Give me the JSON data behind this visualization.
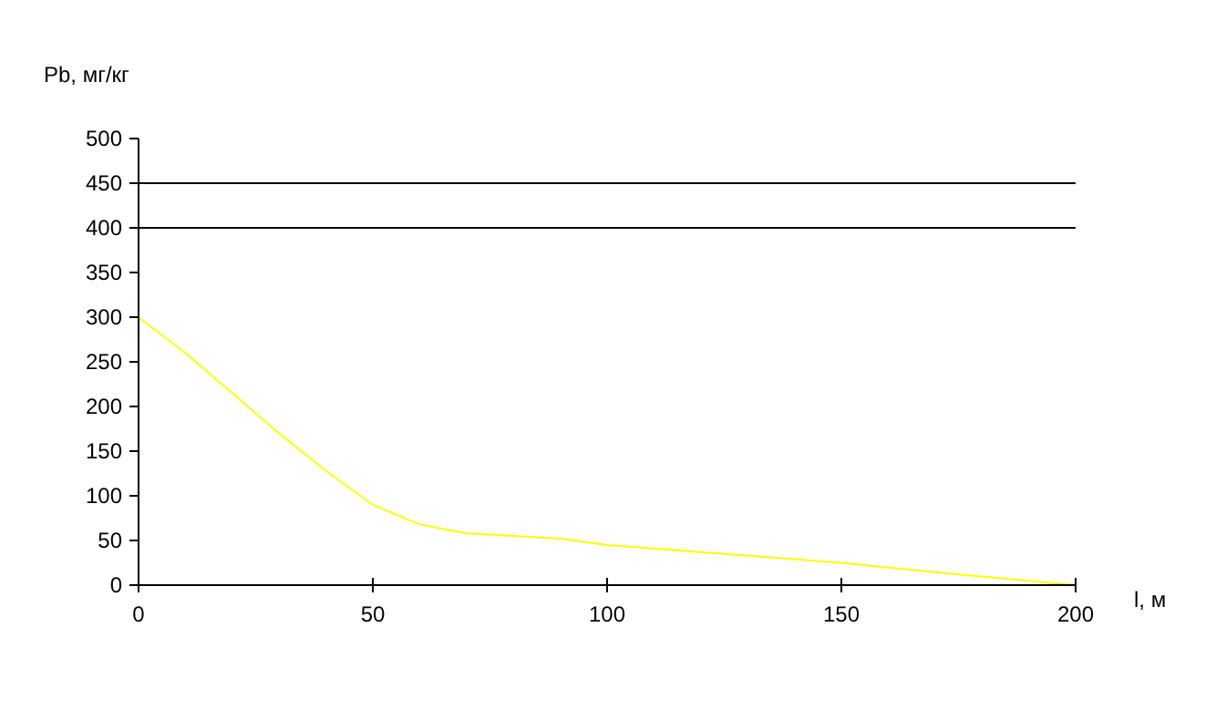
{
  "chart_data": {
    "type": "line",
    "xlabel": "l, м",
    "ylabel": "Pb, мг/кг",
    "x": [
      0,
      10,
      20,
      30,
      40,
      50,
      60,
      70,
      80,
      90,
      100,
      125,
      150,
      175,
      200
    ],
    "series": [
      {
        "color": "#ffff00",
        "values": [
          300,
          260,
          215,
          170,
          128,
          90,
          68,
          58,
          55,
          52,
          45,
          35,
          25,
          12,
          0
        ]
      }
    ],
    "xlim": [
      0,
      200
    ],
    "xticks": [
      0,
      50,
      100,
      150,
      200
    ],
    "ylim": [
      0,
      500
    ],
    "yticks": [
      0,
      50,
      100,
      150,
      200,
      250,
      300,
      350,
      400,
      450,
      500
    ],
    "ref_lines": [
      {
        "axis": "y",
        "value": 400,
        "color": "#000000"
      },
      {
        "axis": "y",
        "value": 450,
        "color": "#000000"
      }
    ],
    "grid": false
  }
}
